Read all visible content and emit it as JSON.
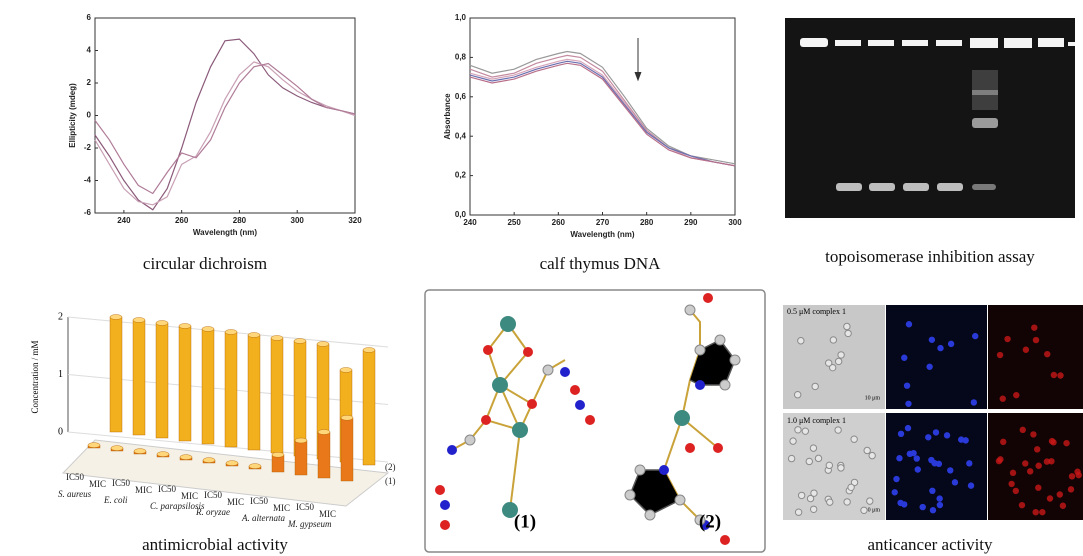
{
  "circular_dichroism": {
    "type": "line",
    "caption": "circular dichroism",
    "xlabel": "Wavelength (nm)",
    "ylabel": "Ellipticity (mdeg)",
    "xlim": [
      230,
      320
    ],
    "ylim": [
      -6,
      6
    ],
    "xticks": [
      240,
      260,
      280,
      300,
      320
    ],
    "yticks": [
      -6,
      -4,
      -2,
      0,
      2,
      4,
      6
    ],
    "x": [
      230,
      235,
      240,
      245,
      250,
      255,
      260,
      265,
      270,
      275,
      280,
      285,
      290,
      295,
      300,
      305,
      310,
      315,
      320
    ],
    "series": [
      {
        "color": "#8b5a7a",
        "values": [
          -1.2,
          -2.5,
          -4,
          -5.2,
          -5.8,
          -4.5,
          -2,
          0.8,
          3,
          4.6,
          4.7,
          3.8,
          2.5,
          1.7,
          1.2,
          0.8,
          0.5,
          0.3,
          0.1
        ]
      },
      {
        "color": "#c9a0b5",
        "values": [
          -1.5,
          -3,
          -4.5,
          -5.3,
          -5.5,
          -5,
          -3,
          -2.5,
          -1,
          1,
          2.5,
          3.3,
          3,
          2.2,
          1.5,
          1,
          0.6,
          0.3,
          0
        ]
      },
      {
        "color": "#b07c98",
        "values": [
          -0.3,
          -1.5,
          -3,
          -4.3,
          -4.8,
          -3.5,
          -2.3,
          -2.6,
          -1.5,
          0.5,
          2,
          3,
          3.2,
          2.5,
          1.8,
          1,
          0.5,
          0.3,
          0.1
        ]
      }
    ]
  },
  "calf_thymus_dna": {
    "type": "line",
    "caption": "calf thymus DNA",
    "xlabel": "Wavelength (nm)",
    "ylabel": "Absorbance",
    "xlim": [
      240,
      300
    ],
    "ylim": [
      0,
      1
    ],
    "xticks": [
      240,
      250,
      260,
      270,
      280,
      290,
      300
    ],
    "yticks": [
      {
        "value": 0,
        "label": "0,0"
      },
      {
        "value": 0.2,
        "label": "0,2"
      },
      {
        "value": 0.4,
        "label": "0,4"
      },
      {
        "value": 0.6,
        "label": "0,6"
      },
      {
        "value": 0.8,
        "label": "0,8"
      },
      {
        "value": 1,
        "label": "1,0"
      }
    ],
    "x": [
      240,
      245,
      250,
      255,
      260,
      262,
      265,
      270,
      275,
      280,
      285,
      290,
      295,
      300
    ],
    "series": [
      {
        "color": "#999999",
        "values": [
          0.76,
          0.72,
          0.74,
          0.79,
          0.82,
          0.83,
          0.82,
          0.75,
          0.6,
          0.44,
          0.35,
          0.3,
          0.28,
          0.26
        ]
      },
      {
        "color": "#c48aa0",
        "values": [
          0.74,
          0.7,
          0.72,
          0.77,
          0.8,
          0.81,
          0.8,
          0.73,
          0.58,
          0.43,
          0.34,
          0.3,
          0.27,
          0.25
        ]
      },
      {
        "color": "#d6a4b8",
        "values": [
          0.72,
          0.69,
          0.71,
          0.75,
          0.78,
          0.79,
          0.78,
          0.71,
          0.57,
          0.42,
          0.34,
          0.29,
          0.27,
          0.25
        ]
      },
      {
        "color": "#6a6fb0",
        "values": [
          0.71,
          0.68,
          0.7,
          0.74,
          0.77,
          0.78,
          0.77,
          0.7,
          0.56,
          0.42,
          0.34,
          0.3,
          0.27,
          0.25
        ]
      },
      {
        "color": "#b86f8a",
        "values": [
          0.7,
          0.67,
          0.69,
          0.73,
          0.76,
          0.77,
          0.76,
          0.69,
          0.55,
          0.41,
          0.33,
          0.29,
          0.27,
          0.25
        ]
      }
    ]
  },
  "topoisomerase": {
    "caption": "topoisomerase inhibition assay"
  },
  "antimicrobial": {
    "type": "bar3d",
    "caption": "antimicrobial activity",
    "ylabel": "Concentration / mM",
    "ylim": [
      0,
      2
    ],
    "yticks": [
      0,
      1,
      2
    ],
    "categories": [
      "IC50",
      "MIC",
      "IC50",
      "MIC",
      "IC50",
      "MIC",
      "IC50",
      "MIC",
      "IC50",
      "MIC",
      "IC50",
      "MIC"
    ],
    "organisms": [
      "S. aureus",
      "E. coli",
      "C. parapsilosis",
      "R. oryzae",
      "A. alternata",
      "M. gypseum"
    ],
    "series": [
      {
        "name": "(2)",
        "color": "#f2b01e",
        "values": [
          2,
          2,
          2,
          2,
          2,
          2,
          2,
          2,
          2,
          2,
          1.6,
          2
        ]
      },
      {
        "name": "(1)",
        "color": "#e8781a",
        "values": [
          0.05,
          0.05,
          0.05,
          0.05,
          0.05,
          0.05,
          0.05,
          0.05,
          0.3,
          0.6,
          0.8,
          1.1
        ]
      }
    ]
  },
  "structures": {
    "labels": [
      "(1)",
      "(2)"
    ]
  },
  "anticancer": {
    "caption": "anticancer activity",
    "rows": [
      "0.5 μM complex 1",
      "1.0 μM complex 1"
    ],
    "scale": "10 μm"
  }
}
